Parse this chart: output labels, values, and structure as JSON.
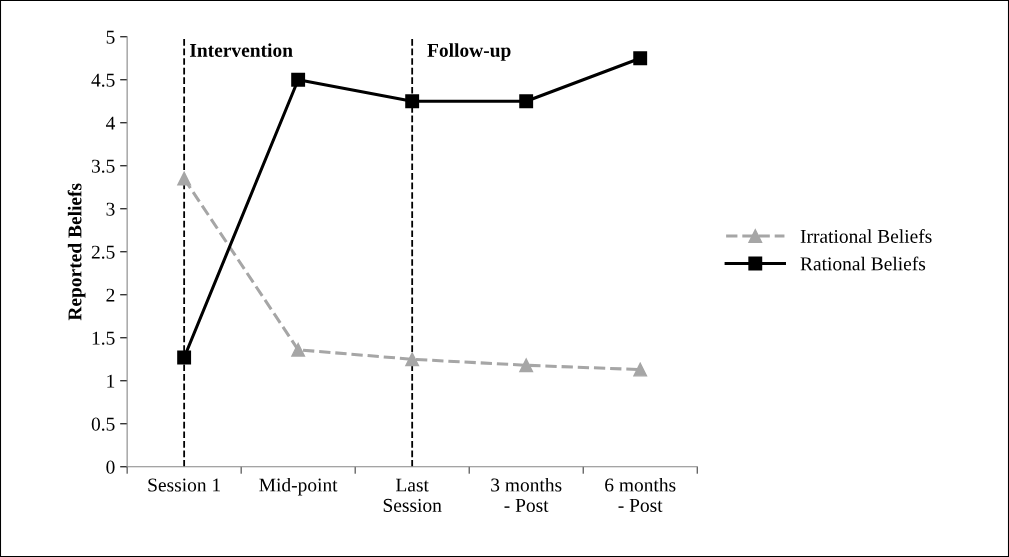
{
  "chart_data": {
    "type": "line",
    "ylabel": "Reported Beliefs",
    "categories": [
      "Session 1",
      "Mid-point",
      "Last\nSession",
      "3 months\n- Post",
      "6 months\n- Post"
    ],
    "series": [
      {
        "name": "Irrational Beliefs",
        "color": "#a6a6a6",
        "marker": "triangle",
        "line_style": "dashed",
        "values": [
          3.35,
          1.36,
          1.25,
          1.18,
          1.13
        ]
      },
      {
        "name": "Rational Beliefs",
        "color": "#000000",
        "marker": "square",
        "line_style": "solid",
        "values": [
          1.27,
          4.5,
          4.25,
          4.25,
          4.75
        ]
      }
    ],
    "ylim": [
      0,
      5
    ],
    "yticks": [
      0,
      0.5,
      1,
      1.5,
      2,
      2.5,
      3,
      3.5,
      4,
      4.5,
      5
    ],
    "ref_lines": [
      {
        "axis": "x",
        "value": "Session 1",
        "color": "#000000",
        "line_style": "dashed"
      },
      {
        "axis": "x",
        "value": "Last\nSession",
        "color": "#000000",
        "line_style": "dashed"
      }
    ],
    "annotations": [
      "Intervention",
      "Follow-up"
    ],
    "legend": "right",
    "grid": false
  }
}
